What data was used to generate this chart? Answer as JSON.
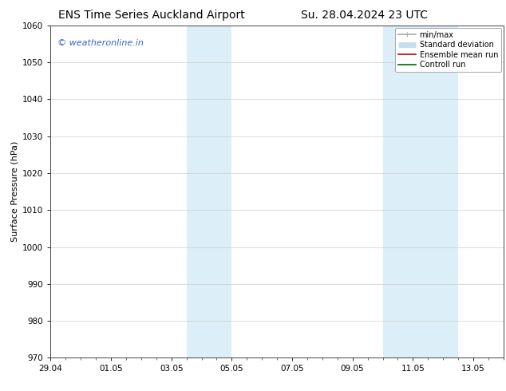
{
  "title": "ENS Time Series Auckland Airport",
  "title2": "Su. 28.04.2024 23 UTC",
  "ylabel": "Surface Pressure (hPa)",
  "ylim": [
    970,
    1060
  ],
  "yticks": [
    970,
    980,
    990,
    1000,
    1010,
    1020,
    1030,
    1040,
    1050,
    1060
  ],
  "xtick_labels": [
    "29.04",
    "01.05",
    "03.05",
    "05.05",
    "07.05",
    "09.05",
    "11.05",
    "13.05"
  ],
  "xtick_positions": [
    0,
    2,
    4,
    6,
    8,
    10,
    12,
    14
  ],
  "xlim": [
    0,
    15
  ],
  "shaded_regions": [
    {
      "start": 4.5,
      "end": 6.0,
      "color": "#dceef8"
    },
    {
      "start": 11.0,
      "end": 13.5,
      "color": "#dceef8"
    }
  ],
  "watermark": "© weatheronline.in",
  "watermark_color": "#3366cc",
  "bg_color": "#ffffff",
  "plot_bg_color": "#ffffff",
  "grid_color": "#cccccc",
  "legend_entries": [
    {
      "label": "min/max",
      "color": "#aaaaaa",
      "lw": 1.2
    },
    {
      "label": "Standard deviation",
      "color": "#c5dff0",
      "lw": 5
    },
    {
      "label": "Ensemble mean run",
      "color": "#cc0000",
      "lw": 1.2
    },
    {
      "label": "Controll run",
      "color": "#006600",
      "lw": 1.2
    }
  ],
  "title_fontsize": 10,
  "axis_fontsize": 8,
  "tick_fontsize": 7.5,
  "legend_fontsize": 7,
  "watermark_fontsize": 8
}
